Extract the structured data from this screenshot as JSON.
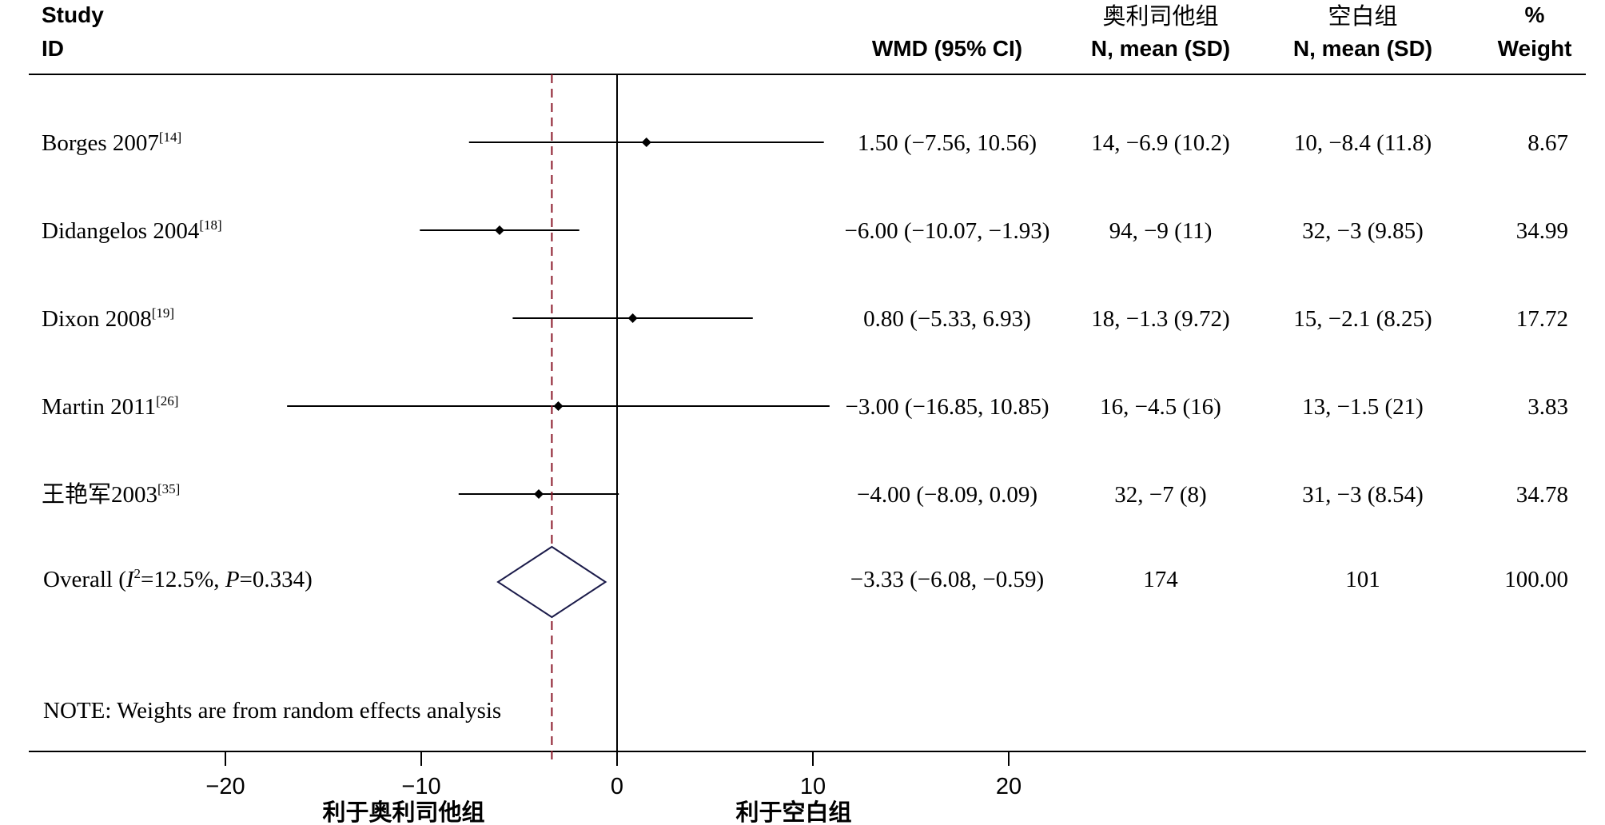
{
  "header": {
    "study": "Study",
    "id": "ID",
    "effect": "WMD (95% CI)",
    "group1_name": "奥利司他组",
    "group1_sub": "N, mean (SD)",
    "group2_name": "空白组",
    "group2_sub": "N, mean (SD)",
    "weight_pct": "%",
    "weight": "Weight"
  },
  "note": "NOTE: Weights are from random effects analysis",
  "overall": {
    "label_prefix": "Overall  (",
    "i2_symbol": "I",
    "i2_sup": "2",
    "i2_rest": "=12.5%, ",
    "p_symbol": "P",
    "p_rest": "=0.334)",
    "effect_text": "−3.33 (−6.08, −0.59)",
    "group1_text": "174",
    "group2_text": "101",
    "weight_text": "100.00"
  },
  "axis_labels": {
    "favors_left": "利于奥利司他组",
    "favors_right": "利于空白组"
  },
  "colors": {
    "line": "#000000",
    "diamond": "#1b1b4a",
    "overall_line": "#8b1a2b"
  },
  "chart_data": {
    "type": "forest",
    "x_ticks": [
      -20,
      -10,
      0,
      10,
      20
    ],
    "xlim": [
      -20,
      20
    ],
    "null_line": 0,
    "studies": [
      {
        "label": "Borges 2007",
        "ref": "[14]",
        "wmd": 1.5,
        "lo": -7.56,
        "hi": 10.56,
        "effect_text": "1.50 (−7.56, 10.56)",
        "group1_text": "14, −6.9 (10.2)",
        "group2_text": "10, −8.4 (11.8)",
        "weight_text": "8.67"
      },
      {
        "label": "Didangelos 2004",
        "ref": "[18]",
        "wmd": -6.0,
        "lo": -10.07,
        "hi": -1.93,
        "effect_text": "−6.00 (−10.07, −1.93)",
        "group1_text": "94, −9 (11)",
        "group2_text": "32, −3 (9.85)",
        "weight_text": "34.99"
      },
      {
        "label": "Dixon 2008",
        "ref": "[19]",
        "wmd": 0.8,
        "lo": -5.33,
        "hi": 6.93,
        "effect_text": "0.80 (−5.33, 6.93)",
        "group1_text": "18, −1.3 (9.72)",
        "group2_text": "15, −2.1 (8.25)",
        "weight_text": "17.72"
      },
      {
        "label": "Martin 2011",
        "ref": "[26]",
        "wmd": -3.0,
        "lo": -16.85,
        "hi": 10.85,
        "effect_text": "−3.00 (−16.85, 10.85)",
        "group1_text": "16, −4.5 (16)",
        "group2_text": "13, −1.5 (21)",
        "weight_text": "3.83"
      },
      {
        "label": "王艳军2003",
        "ref": "[35]",
        "wmd": -4.0,
        "lo": -8.09,
        "hi": 0.09,
        "effect_text": "−4.00 (−8.09, 0.09)",
        "group1_text": "32, −7 (8)",
        "group2_text": "31, −3 (8.54)",
        "weight_text": "34.78"
      }
    ],
    "overall": {
      "wmd": -3.33,
      "lo": -6.08,
      "hi": -0.59
    }
  }
}
